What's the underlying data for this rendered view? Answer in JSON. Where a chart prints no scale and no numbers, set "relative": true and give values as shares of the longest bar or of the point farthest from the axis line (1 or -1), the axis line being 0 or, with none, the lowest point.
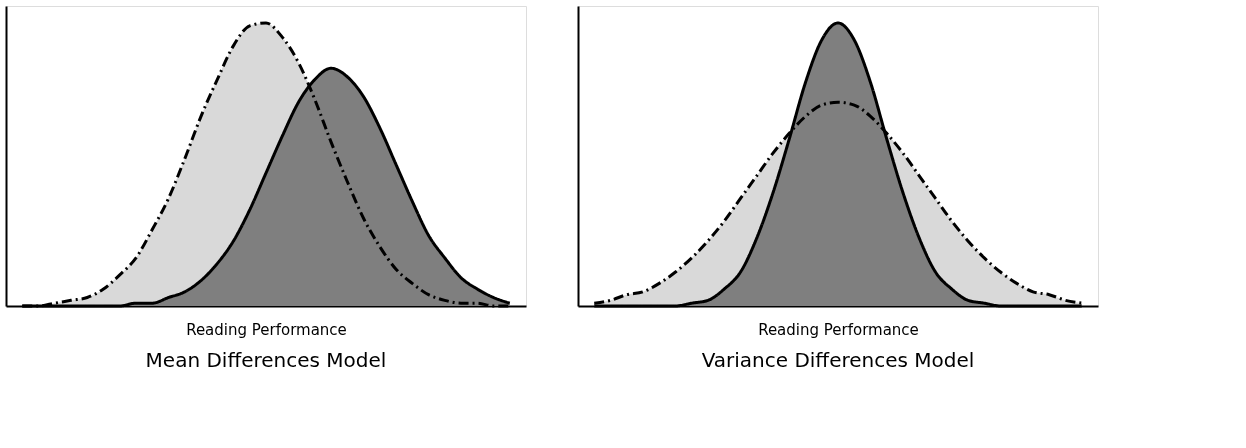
{
  "chart_data": [
    {
      "type": "area",
      "title": "Mean Differences Model",
      "xlabel": "Reading Performance",
      "relative": true,
      "categories": [
        null,
        null,
        null,
        null,
        null,
        null,
        null,
        null,
        null,
        null,
        null,
        null,
        null,
        null,
        null,
        null,
        null,
        null,
        null,
        null,
        null,
        null,
        null,
        null,
        null,
        null,
        null,
        null,
        null,
        null,
        null
      ],
      "series": [
        {
          "color": "#d9d9d9",
          "line_style": "dashed",
          "values": [
            0,
            0,
            0.01,
            0.02,
            0.03,
            0.06,
            0.11,
            0.17,
            0.27,
            0.38,
            0.52,
            0.67,
            0.8,
            0.92,
            0.99,
            1,
            0.95,
            0.86,
            0.73,
            0.58,
            0.44,
            0.31,
            0.21,
            0.13,
            0.08,
            0.04,
            0.02,
            0.01,
            0.01,
            0,
            0
          ]
        },
        {
          "color": "#7f7f7f",
          "line_style": "solid",
          "values": [
            0,
            0,
            0,
            0,
            0,
            0,
            0,
            0.01,
            0.01,
            0.03,
            0.05,
            0.09,
            0.15,
            0.23,
            0.34,
            0.47,
            0.6,
            0.72,
            0.8,
            0.84,
            0.81,
            0.74,
            0.63,
            0.5,
            0.37,
            0.25,
            0.17,
            0.1,
            0.06,
            0.03,
            0.01
          ]
        }
      ]
    },
    {
      "type": "area",
      "title": "Variance Differences Model",
      "xlabel": "Reading Performance",
      "relative": true,
      "categories": [
        null,
        null,
        null,
        null,
        null,
        null,
        null,
        null,
        null,
        null,
        null,
        null,
        null,
        null,
        null,
        null,
        null,
        null,
        null,
        null,
        null,
        null,
        null,
        null,
        null,
        null,
        null,
        null,
        null,
        null,
        null
      ],
      "series": [
        {
          "color": "#d9d9d9",
          "line_style": "dashed",
          "values": [
            0.01,
            0.02,
            0.04,
            0.05,
            0.08,
            0.12,
            0.17,
            0.23,
            0.3,
            0.38,
            0.46,
            0.54,
            0.61,
            0.67,
            0.71,
            0.72,
            0.71,
            0.67,
            0.61,
            0.54,
            0.46,
            0.38,
            0.3,
            0.23,
            0.17,
            0.12,
            0.08,
            0.05,
            0.04,
            0.02,
            0.01
          ]
        },
        {
          "color": "#7f7f7f",
          "line_style": "solid",
          "values": [
            0,
            0,
            0,
            0,
            0,
            0,
            0.01,
            0.02,
            0.06,
            0.12,
            0.24,
            0.4,
            0.59,
            0.79,
            0.94,
            1,
            0.94,
            0.79,
            0.59,
            0.4,
            0.24,
            0.12,
            0.06,
            0.02,
            0.01,
            0,
            0,
            0,
            0,
            0,
            0
          ]
        }
      ]
    }
  ]
}
